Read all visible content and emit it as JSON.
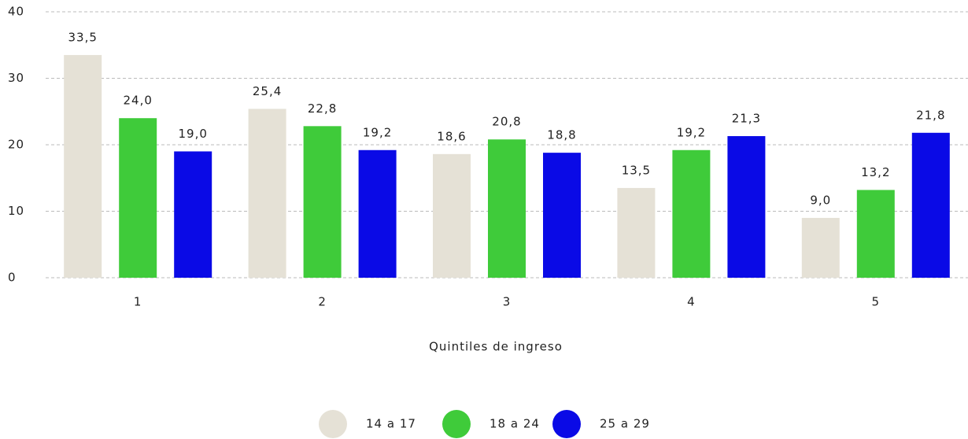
{
  "chart_data": {
    "type": "bar",
    "x_label": "Quintiles de ingreso",
    "categories": [
      "1",
      "2",
      "3",
      "4",
      "5"
    ],
    "series": [
      {
        "name": "14 a 17",
        "color": "#e5e1d6",
        "values": [
          33.5,
          25.4,
          18.6,
          13.5,
          9.0
        ],
        "value_labels": [
          "33,5",
          "25,4",
          "18,6",
          "13,5",
          "9,0"
        ]
      },
      {
        "name": "18 a 24",
        "color": "#3fcb3a",
        "values": [
          24.0,
          22.8,
          20.8,
          19.2,
          13.2
        ],
        "value_labels": [
          "24,0",
          "22,8",
          "20,8",
          "19,2",
          "13,2"
        ]
      },
      {
        "name": "25 a 29",
        "color": "#0a0ae6",
        "values": [
          19.0,
          19.2,
          18.8,
          21.3,
          21.8
        ],
        "value_labels": [
          "19,0",
          "19,2",
          "18,8",
          "21,3",
          "21,8"
        ]
      }
    ],
    "ylim": [
      0,
      40
    ],
    "yticks": [
      0,
      10,
      20,
      30,
      40
    ],
    "grid": true,
    "legend": "bottom"
  }
}
